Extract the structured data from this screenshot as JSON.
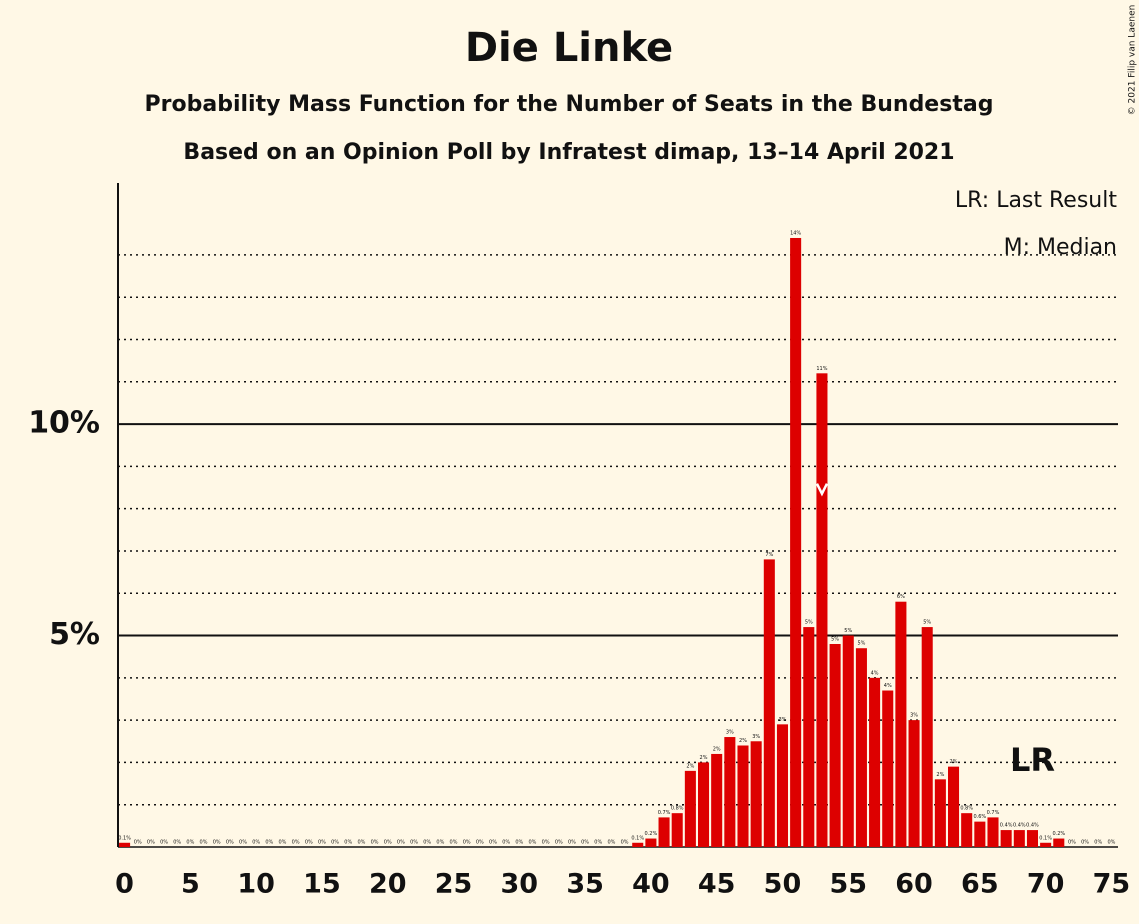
{
  "chart_data": {
    "type": "bar",
    "title": "Die Linke",
    "subtitle": "Probability Mass Function for the Number of Seats in the Bundestag",
    "subtitle2": "Based on an Opinion Poll by Infratest dimap, 13–14 April 2021",
    "copyright": "© 2021 Filip van Laenen",
    "legend": [
      "LR: Last Result",
      "M: Median"
    ],
    "last_result_label": "LR",
    "last_result": 69,
    "median": 53,
    "color": "#dd0000",
    "x": [
      0,
      1,
      2,
      3,
      4,
      5,
      6,
      7,
      8,
      9,
      10,
      11,
      12,
      13,
      14,
      15,
      16,
      17,
      18,
      19,
      20,
      21,
      22,
      23,
      24,
      25,
      26,
      27,
      28,
      29,
      30,
      31,
      32,
      33,
      34,
      35,
      36,
      37,
      38,
      39,
      40,
      41,
      42,
      43,
      44,
      45,
      46,
      47,
      48,
      49,
      50,
      51,
      52,
      53,
      54,
      55,
      56,
      57,
      58,
      59,
      60,
      61,
      62,
      63,
      64,
      65,
      66,
      67,
      68,
      69,
      70,
      71,
      72,
      73,
      74,
      75
    ],
    "values": [
      0.1,
      0,
      0,
      0,
      0,
      0,
      0,
      0,
      0,
      0,
      0,
      0,
      0,
      0,
      0,
      0,
      0,
      0,
      0,
      0,
      0,
      0,
      0,
      0,
      0,
      0,
      0,
      0,
      0,
      0,
      0,
      0,
      0,
      0,
      0,
      0,
      0,
      0,
      0,
      0.1,
      0.2,
      0.7,
      0.8,
      1.8,
      2.0,
      2.2,
      2.6,
      2.4,
      2.5,
      6.8,
      2.9,
      14.4,
      5.2,
      11.2,
      4.8,
      5.0,
      4.7,
      4.0,
      3.7,
      5.8,
      3.0,
      5.2,
      1.6,
      1.9,
      0.8,
      0.6,
      0.7,
      0.4,
      0.4,
      0.4,
      0.1,
      0.2,
      0,
      0,
      0,
      0
    ],
    "value_labels": [
      "0.1%",
      "0%",
      "0%",
      "0%",
      "0%",
      "0%",
      "0%",
      "0%",
      "0%",
      "0%",
      "0%",
      "0%",
      "0%",
      "0%",
      "0%",
      "0%",
      "0%",
      "0%",
      "0%",
      "0%",
      "0%",
      "0%",
      "0%",
      "0%",
      "0%",
      "0%",
      "0%",
      "0%",
      "0%",
      "0%",
      "0%",
      "0%",
      "0%",
      "0%",
      "0%",
      "0%",
      "0%",
      "0%",
      "0%",
      "0.1%",
      "0.2%",
      "0.7%",
      "0.8%",
      "2%",
      "2%",
      "2%",
      "3%",
      "2%",
      "3%",
      "7%",
      "3%",
      "14%",
      "5%",
      "11%",
      "5%",
      "5%",
      "5%",
      "4%",
      "4%",
      "6%",
      "3%",
      "5%",
      "2%",
      "2%",
      "0.8%",
      "0.6%",
      "0.7%",
      "0.4%",
      "0.4%",
      "0.4%",
      "0.1%",
      "0.2%",
      "0%",
      "0%",
      "0%",
      "0%"
    ],
    "xlim": [
      -0.5,
      75.5
    ],
    "xticks": [
      0,
      5,
      10,
      15,
      20,
      25,
      30,
      35,
      40,
      45,
      50,
      55,
      60,
      65,
      70,
      75
    ],
    "ylim": [
      0,
      15.7
    ],
    "yticks": [
      {
        "value": 5,
        "label": "5%"
      },
      {
        "value": 10,
        "label": "10%"
      }
    ],
    "minor_yticks": [
      1,
      2,
      3,
      4,
      6,
      7,
      8,
      9,
      11,
      12,
      13,
      14
    ],
    "grid": true
  }
}
